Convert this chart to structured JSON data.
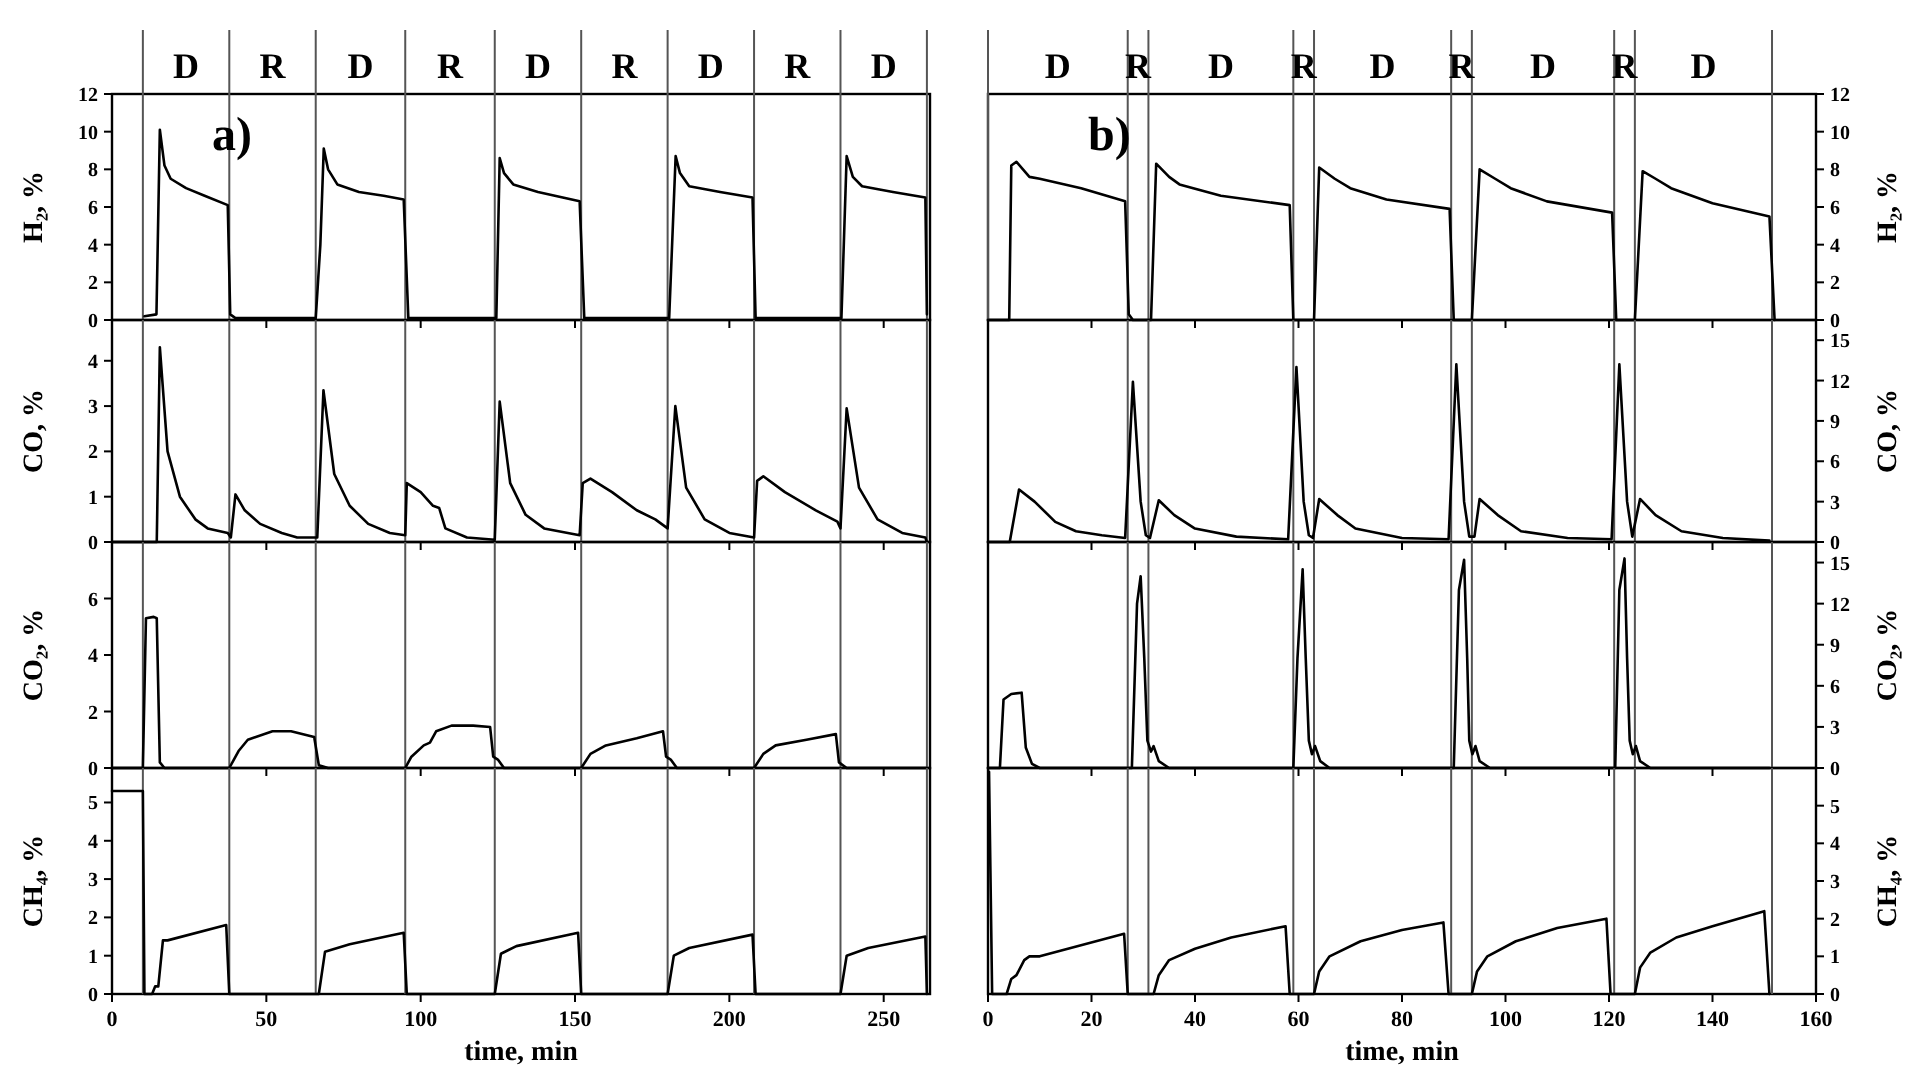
{
  "chart_data": [
    {
      "type": "line",
      "annotations": [
        "a)",
        "D",
        "R",
        "D",
        "R",
        "D",
        "R",
        "D",
        "R",
        "D"
      ],
      "xlim": [
        0,
        265
      ],
      "xticks": [
        0,
        50,
        100,
        150,
        200,
        250
      ],
      "ylim": [
        0,
        12
      ],
      "yticks": [
        0,
        2,
        4,
        6,
        8,
        10,
        12
      ],
      "ylabel": "H₂, %",
      "tick_labels": "y",
      "ref_lines": [
        {
          "axis": "x",
          "value": 10
        },
        {
          "axis": "x",
          "value": 38
        },
        {
          "axis": "x",
          "value": 66
        },
        {
          "axis": "x",
          "value": 95
        },
        {
          "axis": "x",
          "value": 124
        },
        {
          "axis": "x",
          "value": 152
        },
        {
          "axis": "x",
          "value": 180
        },
        {
          "axis": "x",
          "value": 208
        },
        {
          "axis": "x",
          "value": 236
        },
        {
          "axis": "x",
          "value": 264
        }
      ],
      "series": [
        {
          "color": "#000000",
          "x": [
            10.5,
            14.4,
            15.5,
            17,
            19,
            24,
            30,
            37.5,
            38.3,
            40,
            66,
            67.5,
            68.6,
            70,
            73,
            80,
            88,
            94.5,
            96,
            124.5,
            125.6,
            127,
            130,
            138,
            151.5,
            153,
            180.5,
            182.6,
            184,
            187,
            197,
            207.5,
            208.5,
            236.3,
            238,
            240,
            243,
            253,
            263.5,
            264
          ],
          "values": [
            0.2,
            0.3,
            10.1,
            8.2,
            7.5,
            7.0,
            6.6,
            6.1,
            0.3,
            0.1,
            0.1,
            4,
            9.1,
            8,
            7.2,
            6.8,
            6.6,
            6.4,
            0.1,
            0.1,
            8.6,
            7.8,
            7.2,
            6.8,
            6.3,
            0.1,
            0.1,
            8.7,
            7.8,
            7.1,
            6.8,
            6.5,
            0.1,
            0.1,
            8.7,
            7.6,
            7.1,
            6.8,
            6.5,
            0.3
          ]
        }
      ]
    },
    {
      "type": "line",
      "xlim": [
        0,
        265
      ],
      "xticks": [
        0,
        50,
        100,
        150,
        200,
        250
      ],
      "ylim": [
        0,
        4.9
      ],
      "yticks": [
        0,
        1,
        2,
        3,
        4
      ],
      "ylabel": "CO, %",
      "tick_labels": "y",
      "ref_lines": [
        {
          "axis": "x",
          "value": 10
        },
        {
          "axis": "x",
          "value": 38
        },
        {
          "axis": "x",
          "value": 66
        },
        {
          "axis": "x",
          "value": 95
        },
        {
          "axis": "x",
          "value": 124
        },
        {
          "axis": "x",
          "value": 152
        },
        {
          "axis": "x",
          "value": 180
        },
        {
          "axis": "x",
          "value": 208
        },
        {
          "axis": "x",
          "value": 236
        },
        {
          "axis": "x",
          "value": 264
        }
      ],
      "series": [
        {
          "color": "#000000",
          "x": [
            0,
            14.5,
            15.5,
            18,
            22,
            27,
            31,
            37.5,
            38.5,
            40,
            43,
            48,
            55,
            60,
            66.5,
            68.5,
            72,
            77,
            83,
            90,
            95,
            95.5,
            100,
            104,
            106,
            108,
            115,
            124,
            125.6,
            129,
            134,
            140,
            151.5,
            152.5,
            155,
            162,
            170,
            176,
            180,
            182.5,
            186,
            192,
            200,
            208,
            209,
            211,
            218,
            228,
            235,
            236,
            238,
            242,
            248,
            256,
            263.5,
            264
          ],
          "values": [
            0,
            0,
            4.3,
            2,
            1,
            0.5,
            0.3,
            0.2,
            0.1,
            1.05,
            0.7,
            0.4,
            0.2,
            0.1,
            0.1,
            3.35,
            1.5,
            0.8,
            0.4,
            0.2,
            0.15,
            1.3,
            1.1,
            0.8,
            0.75,
            0.3,
            0.1,
            0.05,
            3.1,
            1.3,
            0.6,
            0.3,
            0.15,
            1.3,
            1.4,
            1.1,
            0.7,
            0.5,
            0.3,
            3.0,
            1.2,
            0.5,
            0.2,
            0.1,
            1.35,
            1.45,
            1.1,
            0.7,
            0.45,
            0.3,
            2.95,
            1.2,
            0.5,
            0.2,
            0.1,
            0
          ]
        }
      ]
    },
    {
      "type": "line",
      "xlim": [
        0,
        265
      ],
      "xticks": [
        0,
        50,
        100,
        150,
        200,
        250
      ],
      "ylim": [
        0,
        8
      ],
      "yticks": [
        0,
        2,
        4,
        6
      ],
      "ylabel": "CO₂, %",
      "tick_labels": "y",
      "ref_lines": [
        {
          "axis": "x",
          "value": 10
        },
        {
          "axis": "x",
          "value": 38
        },
        {
          "axis": "x",
          "value": 66
        },
        {
          "axis": "x",
          "value": 95
        },
        {
          "axis": "x",
          "value": 124
        },
        {
          "axis": "x",
          "value": 152
        },
        {
          "axis": "x",
          "value": 180
        },
        {
          "axis": "x",
          "value": 208
        },
        {
          "axis": "x",
          "value": 236
        },
        {
          "axis": "x",
          "value": 264
        }
      ],
      "series": [
        {
          "color": "#000000",
          "x": [
            0,
            10,
            11,
            13.5,
            14.5,
            15.5,
            17,
            38,
            41,
            44,
            52,
            58,
            65.5,
            67,
            70,
            95,
            97,
            101,
            103,
            105,
            110,
            117,
            122.5,
            123.5,
            125,
            127,
            152,
            155,
            160,
            170,
            178.5,
            179.5,
            181,
            183,
            208,
            211,
            215,
            225,
            234.5,
            235.5,
            238,
            264
          ],
          "values": [
            0,
            0,
            5.3,
            5.35,
            5.3,
            0.2,
            0,
            0,
            0.6,
            1.0,
            1.3,
            1.3,
            1.1,
            0.1,
            0,
            0,
            0.4,
            0.8,
            0.9,
            1.3,
            1.5,
            1.5,
            1.45,
            0.4,
            0.3,
            0,
            0,
            0.5,
            0.8,
            1.05,
            1.3,
            0.4,
            0.3,
            0,
            0,
            0.5,
            0.8,
            1.0,
            1.2,
            0.2,
            0,
            0
          ]
        }
      ]
    },
    {
      "type": "line",
      "xlim": [
        0,
        265
      ],
      "xticks": [
        0,
        50,
        100,
        150,
        200,
        250
      ],
      "ylim": [
        0,
        5.9
      ],
      "yticks": [
        0,
        1,
        2,
        3,
        4,
        5
      ],
      "ylabel": "CH₄, %",
      "xlabel": "time, min",
      "ref_lines": [
        {
          "axis": "x",
          "value": 10
        },
        {
          "axis": "x",
          "value": 38
        },
        {
          "axis": "x",
          "value": 66
        },
        {
          "axis": "x",
          "value": 95
        },
        {
          "axis": "x",
          "value": 124
        },
        {
          "axis": "x",
          "value": 152
        },
        {
          "axis": "x",
          "value": 180
        },
        {
          "axis": "x",
          "value": 208
        },
        {
          "axis": "x",
          "value": 236
        },
        {
          "axis": "x",
          "value": 264
        }
      ],
      "series": [
        {
          "color": "#000000",
          "x": [
            0,
            10,
            10.5,
            13,
            14,
            15,
            16.5,
            18,
            37,
            38,
            67,
            69,
            77,
            94.5,
            95.5,
            124,
            126,
            131,
            151,
            152,
            180,
            182,
            187,
            207.5,
            208.5,
            236,
            238,
            245,
            263.5,
            264
          ],
          "values": [
            5.3,
            5.3,
            0,
            0,
            0.2,
            0.2,
            1.4,
            1.4,
            1.8,
            0,
            0,
            1.1,
            1.3,
            1.6,
            0,
            0,
            1.05,
            1.25,
            1.6,
            0,
            0,
            1.0,
            1.2,
            1.55,
            0,
            0,
            1.0,
            1.2,
            1.5,
            0
          ]
        }
      ]
    },
    {
      "type": "line",
      "annotations": [
        "b)",
        "D",
        "R",
        "D",
        "R",
        "D",
        "R",
        "D",
        "R",
        "D"
      ],
      "xlim": [
        0,
        160
      ],
      "xticks": [
        0,
        20,
        40,
        60,
        80,
        100,
        120,
        140,
        160
      ],
      "y2lim": [
        0,
        12
      ],
      "y2ticks": [
        0,
        2,
        4,
        6,
        8,
        10,
        12
      ],
      "y2label": "H₂, %",
      "tick_labels": "y",
      "ref_lines": [
        {
          "axis": "x",
          "value": 0
        },
        {
          "axis": "x",
          "value": 27
        },
        {
          "axis": "x",
          "value": 31
        },
        {
          "axis": "x",
          "value": 59
        },
        {
          "axis": "x",
          "value": 63
        },
        {
          "axis": "x",
          "value": 89.5
        },
        {
          "axis": "x",
          "value": 93.5
        },
        {
          "axis": "x",
          "value": 121
        },
        {
          "axis": "x",
          "value": 125
        },
        {
          "axis": "x",
          "value": 151.5
        }
      ],
      "series": [
        {
          "axis": "y2",
          "color": "#000000",
          "x": [
            0,
            4.1,
            4.5,
            5.5,
            8,
            10,
            18,
            26.5,
            27.2,
            28,
            31.5,
            32.5,
            35,
            37,
            45,
            58.3,
            59,
            63,
            64,
            67,
            70,
            77,
            89.2,
            90,
            93.5,
            95,
            98,
            101,
            108,
            120.6,
            121.4,
            125,
            126.5,
            129,
            132,
            140,
            151,
            152
          ],
          "values": [
            0,
            0,
            8.2,
            8.4,
            7.6,
            7.5,
            7.0,
            6.3,
            0.3,
            0,
            0,
            8.3,
            7.6,
            7.2,
            6.6,
            6.1,
            0,
            0,
            8.1,
            7.5,
            7.0,
            6.4,
            5.9,
            0,
            0,
            8.0,
            7.5,
            7.0,
            6.3,
            5.7,
            0,
            0,
            7.9,
            7.5,
            7.0,
            6.2,
            5.5,
            0
          ]
        }
      ]
    },
    {
      "type": "line",
      "xlim": [
        0,
        160
      ],
      "xticks": [
        0,
        20,
        40,
        60,
        80,
        100,
        120,
        140,
        160
      ],
      "y2lim": [
        0,
        16.5
      ],
      "y2ticks": [
        0,
        3,
        6,
        9,
        12,
        15
      ],
      "y2label": "CO, %",
      "tick_labels": "y",
      "ref_lines": [
        {
          "axis": "x",
          "value": 27
        },
        {
          "axis": "x",
          "value": 31
        },
        {
          "axis": "x",
          "value": 59
        },
        {
          "axis": "x",
          "value": 63
        },
        {
          "axis": "x",
          "value": 89.5
        },
        {
          "axis": "x",
          "value": 93.5
        },
        {
          "axis": "x",
          "value": 121
        },
        {
          "axis": "x",
          "value": 125
        },
        {
          "axis": "x",
          "value": 151.5
        }
      ],
      "series": [
        {
          "axis": "y2",
          "color": "#000000",
          "x": [
            0,
            4.2,
            6,
            9,
            13,
            17,
            22,
            26.5,
            28,
            29.5,
            30.5,
            31.3,
            33,
            36,
            40,
            48,
            58,
            59.6,
            61,
            62,
            62.8,
            64,
            67.5,
            71,
            80,
            89,
            90.5,
            92,
            93,
            94,
            95,
            98.5,
            103,
            112,
            120.5,
            122,
            123.5,
            124.5,
            126,
            129,
            134,
            142,
            151
          ],
          "values": [
            0,
            0,
            3.9,
            3.0,
            1.5,
            0.8,
            0.5,
            0.3,
            11.9,
            3,
            0.5,
            0.3,
            3.1,
            2.0,
            1.0,
            0.4,
            0.2,
            13.0,
            3,
            0.5,
            0.3,
            3.2,
            2.0,
            1.0,
            0.3,
            0.2,
            13.2,
            3,
            0.4,
            0.4,
            3.2,
            2.0,
            0.8,
            0.3,
            0.2,
            13.2,
            3,
            0.4,
            3.2,
            2,
            0.8,
            0.3,
            0.1
          ]
        }
      ]
    },
    {
      "type": "line",
      "xlim": [
        0,
        160
      ],
      "xticks": [
        0,
        20,
        40,
        60,
        80,
        100,
        120,
        140,
        160
      ],
      "y2lim": [
        0,
        16.5
      ],
      "y2ticks": [
        0,
        3,
        6,
        9,
        12,
        15
      ],
      "y2label": "CO₂, %",
      "tick_labels": "y",
      "ref_lines": [
        {
          "axis": "x",
          "value": 27
        },
        {
          "axis": "x",
          "value": 31
        },
        {
          "axis": "x",
          "value": 59
        },
        {
          "axis": "x",
          "value": 63
        },
        {
          "axis": "x",
          "value": 89.5
        },
        {
          "axis": "x",
          "value": 93.5
        },
        {
          "axis": "x",
          "value": 121
        },
        {
          "axis": "x",
          "value": 125
        },
        {
          "axis": "x",
          "value": 151.5
        }
      ],
      "series": [
        {
          "axis": "y2",
          "color": "#000000",
          "x": [
            0,
            2.3,
            3,
            4.5,
            6.5,
            7.3,
            8.5,
            10,
            27.8,
            28.8,
            29.5,
            30.2,
            30.8,
            31.5,
            32,
            33,
            35,
            59,
            59.8,
            60.8,
            61.4,
            62,
            62.6,
            63.2,
            64.2,
            66,
            90,
            91,
            92,
            92.6,
            93,
            93.6,
            94.2,
            95,
            97,
            121.2,
            122,
            123,
            123.5,
            124,
            124.6,
            125.2,
            126,
            128,
            151
          ],
          "values": [
            0,
            0,
            5.0,
            5.4,
            5.5,
            1.5,
            0.3,
            0,
            0,
            12,
            14,
            8,
            2,
            1.2,
            1.6,
            0.5,
            0,
            0,
            8,
            14.5,
            8,
            2,
            1.0,
            1.6,
            0.5,
            0,
            0,
            13,
            15.2,
            8,
            2,
            1.0,
            1.6,
            0.5,
            0,
            0,
            13,
            15.3,
            8,
            2,
            1.0,
            1.6,
            0.5,
            0,
            0
          ]
        }
      ]
    },
    {
      "type": "line",
      "xlim": [
        0,
        160
      ],
      "xticks": [
        0,
        20,
        40,
        60,
        80,
        100,
        120,
        140,
        160
      ],
      "y2lim": [
        0,
        6
      ],
      "y2ticks": [
        0,
        1,
        2,
        3,
        4,
        5
      ],
      "y2label": "CH₄, %",
      "xlabel": "time, min",
      "ref_lines": [
        {
          "axis": "x",
          "value": 27
        },
        {
          "axis": "x",
          "value": 31
        },
        {
          "axis": "x",
          "value": 59
        },
        {
          "axis": "x",
          "value": 63
        },
        {
          "axis": "x",
          "value": 89.5
        },
        {
          "axis": "x",
          "value": 93.5
        },
        {
          "axis": "x",
          "value": 121
        },
        {
          "axis": "x",
          "value": 125
        },
        {
          "axis": "x",
          "value": 151.5
        }
      ],
      "series": [
        {
          "axis": "y2",
          "color": "#000000",
          "x": [
            0.2,
            0.8,
            3.6,
            4.5,
            5.5,
            7,
            8,
            10,
            26.3,
            27,
            32,
            33,
            35,
            40,
            47,
            57.5,
            58.3,
            63,
            64,
            66,
            72,
            80,
            88,
            89,
            93.5,
            94.5,
            96.5,
            102,
            110,
            119.5,
            120.3,
            125,
            126,
            128,
            133,
            140,
            150,
            151
          ],
          "values": [
            5.9,
            0,
            0,
            0.4,
            0.5,
            0.9,
            1.0,
            1.0,
            1.6,
            0,
            0,
            0.5,
            0.9,
            1.2,
            1.5,
            1.8,
            0,
            0,
            0.6,
            1.0,
            1.4,
            1.7,
            1.9,
            0,
            0,
            0.6,
            1.0,
            1.4,
            1.75,
            2.0,
            0,
            0,
            0.7,
            1.1,
            1.5,
            1.8,
            2.2,
            0
          ]
        }
      ]
    }
  ]
}
